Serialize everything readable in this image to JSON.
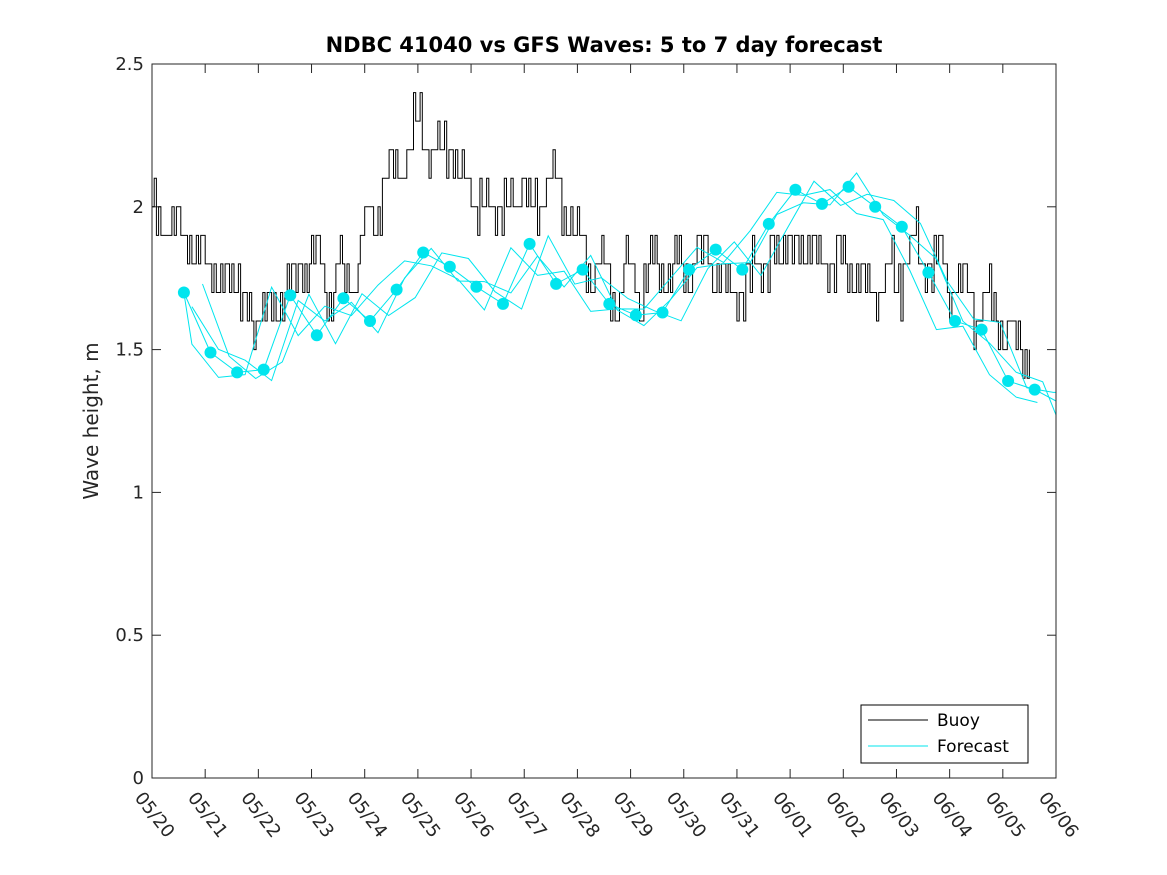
{
  "chart_data": {
    "type": "line",
    "title": "NDBC 41040 vs GFS Waves: 5 to 7 day forecast",
    "xlabel": "",
    "ylabel": "Wave height, m",
    "ylim": [
      0,
      2.5
    ],
    "xlim": [
      "05/20",
      "06/06"
    ],
    "yticks": [
      "0",
      "0.5",
      "1",
      "1.5",
      "2",
      "2.5"
    ],
    "xticks": [
      "05/20",
      "05/21",
      "05/22",
      "05/23",
      "05/24",
      "05/25",
      "05/26",
      "05/27",
      "05/28",
      "05/29",
      "05/30",
      "05/31",
      "06/01",
      "06/02",
      "06/03",
      "06/04",
      "06/05",
      "06/06"
    ],
    "grid": false,
    "legend": {
      "placement": "bottom-right",
      "entries": [
        "Buoy",
        "Forecast"
      ]
    },
    "colors": {
      "buoy": "#000000",
      "forecast": "#00e5ee"
    },
    "series": [
      {
        "name": "Buoy",
        "x_days": [
          0.0,
          0.25,
          0.5,
          0.75,
          1.0,
          1.25,
          1.5,
          1.75,
          2.0,
          2.25,
          2.5,
          2.75,
          3.0,
          3.25,
          3.5,
          3.75,
          4.0,
          4.25,
          4.5,
          4.75,
          5.0,
          5.25,
          5.5,
          5.75,
          6.0,
          6.25,
          6.5,
          6.75,
          7.0,
          7.25,
          7.5,
          7.75,
          8.0,
          8.25,
          8.5,
          8.75,
          9.0,
          9.25,
          9.5,
          9.75,
          10.0,
          10.25,
          10.5,
          10.75,
          11.0,
          11.25,
          11.5,
          11.75,
          12.0,
          12.25,
          12.5,
          12.75,
          13.0,
          13.25,
          13.5,
          13.75,
          14.0,
          14.25,
          14.5,
          14.75,
          15.0,
          15.25,
          15.5,
          15.75,
          16.0,
          16.25,
          16.5
        ],
        "values": [
          1.95,
          1.95,
          1.9,
          1.85,
          1.8,
          1.75,
          1.75,
          1.65,
          1.6,
          1.65,
          1.7,
          1.8,
          1.85,
          1.75,
          1.75,
          1.75,
          1.9,
          2.05,
          2.1,
          2.2,
          2.3,
          2.25,
          2.2,
          2.15,
          2.05,
          2.0,
          2.0,
          2.0,
          2.05,
          2.0,
          2.1,
          2.0,
          1.85,
          1.8,
          1.75,
          1.7,
          1.75,
          1.75,
          1.8,
          1.8,
          1.8,
          1.85,
          1.8,
          1.75,
          1.7,
          1.75,
          1.8,
          1.85,
          1.9,
          1.85,
          1.85,
          1.8,
          1.8,
          1.75,
          1.7,
          1.75,
          1.75,
          1.85,
          1.85,
          1.8,
          1.75,
          1.7,
          1.65,
          1.65,
          1.6,
          1.55,
          1.5
        ]
      },
      {
        "name": "Forecast",
        "x_days": [
          0.6,
          1.1,
          1.6,
          2.1,
          2.6,
          3.1,
          3.6,
          4.1,
          4.6,
          5.1,
          5.6,
          6.1,
          6.6,
          7.1,
          7.6,
          8.1,
          8.6,
          9.1,
          9.6,
          10.1,
          10.6,
          11.1,
          11.6,
          12.1,
          12.6,
          13.1,
          13.6,
          14.1,
          14.6,
          15.1,
          15.6,
          16.1,
          16.6,
          17.0
        ],
        "values": [
          1.7,
          1.49,
          1.42,
          1.43,
          1.69,
          1.55,
          1.68,
          1.6,
          1.71,
          1.84,
          1.79,
          1.72,
          1.66,
          1.87,
          1.73,
          1.78,
          1.66,
          1.62,
          1.63,
          1.78,
          1.85,
          1.78,
          1.94,
          2.06,
          2.01,
          2.07,
          2.0,
          1.93,
          1.77,
          1.6,
          1.57,
          1.39,
          1.36,
          1.32
        ]
      }
    ]
  }
}
